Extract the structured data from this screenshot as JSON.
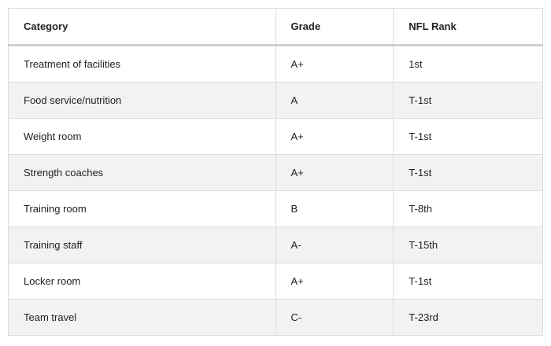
{
  "table": {
    "header": [
      "Category",
      "Grade",
      "NFL Rank"
    ],
    "rows": [
      [
        "Treatment of facilities",
        "A+",
        "1st"
      ],
      [
        "Food service/nutrition",
        "A",
        "T-1st"
      ],
      [
        "Weight room",
        "A+",
        "T-1st"
      ],
      [
        "Strength coaches",
        "A+",
        "T-1st"
      ],
      [
        "Training room",
        "B",
        "T-8th"
      ],
      [
        "Training staff",
        "A-",
        "T-15th"
      ],
      [
        "Locker room",
        "A+",
        "T-1st"
      ],
      [
        "Team travel",
        "C-",
        "T-23rd"
      ]
    ]
  }
}
